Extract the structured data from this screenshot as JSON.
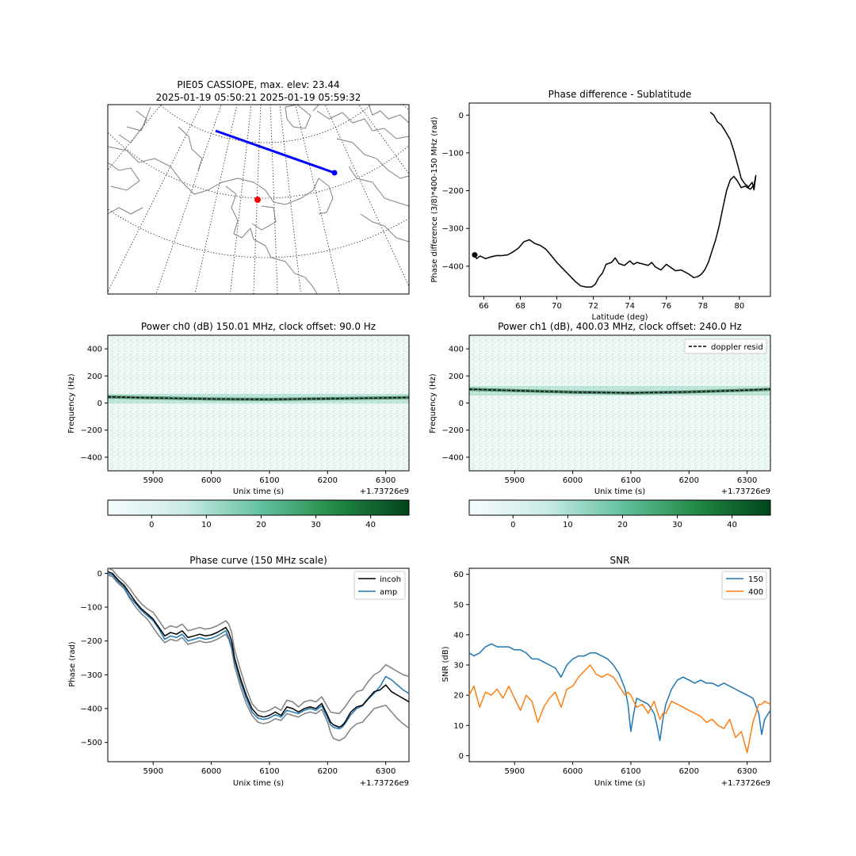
{
  "colors": {
    "orbit": "#0000ff",
    "station": "#ff0000",
    "phase_line": "#000000",
    "series_150": "#1f77b4",
    "series_400": "#ff7f0e",
    "envelope": "#808080",
    "coast": "#808080",
    "colormap": [
      "#f7fcfd",
      "#ccece6",
      "#66c2a4",
      "#238b45",
      "#00441b"
    ]
  },
  "chart_data": [
    {
      "id": "map",
      "type": "map",
      "title": "PIE05 CASSIOPE, max. elev: 23.44",
      "subtitle": "2025-01-19 05:50:21 2025-01-19 05:59:32",
      "projection": "north polar azimuthal",
      "grid": "dotted meridians and parallels",
      "ground_track": {
        "start": "northwest",
        "end": "southeast",
        "end_marker": true
      },
      "station_marker": "red dot"
    },
    {
      "id": "phase_lat",
      "type": "line",
      "title": "Phase difference - Sublatitude",
      "xlabel": "Latitude (deg)",
      "ylabel": "Phase difference (3/8)*400-150 MHz (rad)",
      "xlim": [
        65.2,
        81.7
      ],
      "ylim": [
        -480,
        32
      ],
      "xticks": [
        66,
        68,
        70,
        72,
        74,
        76,
        78,
        80
      ],
      "yticks": [
        0,
        -100,
        -200,
        -300,
        -400
      ],
      "grid": false,
      "series": [
        {
          "color": "#000000",
          "x": [
            78.4,
            78.6,
            78.8,
            79.0,
            79.2,
            79.5,
            79.7,
            79.9,
            80.1,
            80.3,
            80.5,
            80.7,
            80.8,
            80.9,
            80.8,
            80.6,
            80.3,
            80.1,
            79.9,
            79.7,
            79.5,
            79.3,
            79.1,
            78.9,
            78.7,
            78.5,
            78.3,
            78.1,
            77.9,
            77.7,
            77.5,
            77.2,
            77.0,
            76.8,
            76.5,
            76.2,
            76.0,
            75.7,
            75.4,
            75.2,
            75.0,
            74.7,
            74.4,
            74.2,
            74.0,
            73.7,
            73.4,
            73.2,
            73.0,
            72.7,
            72.5,
            72.3,
            72.1,
            71.9,
            71.6,
            71.3,
            71.0,
            70.8,
            70.6,
            70.3,
            70.0,
            69.7,
            69.4,
            69.1,
            68.8,
            68.5,
            68.2,
            67.9,
            67.6,
            67.3,
            67.0,
            66.7,
            66.4,
            66.1,
            65.8,
            65.6,
            65.5
          ],
          "y": [
            8,
            0,
            -18,
            -25,
            -40,
            -65,
            -95,
            -130,
            -168,
            -182,
            -190,
            -178,
            -198,
            -160,
            -185,
            -196,
            -188,
            -192,
            -175,
            -162,
            -172,
            -200,
            -245,
            -292,
            -330,
            -360,
            -390,
            -410,
            -422,
            -428,
            -430,
            -420,
            -415,
            -410,
            -412,
            -402,
            -395,
            -410,
            -402,
            -390,
            -398,
            -394,
            -390,
            -395,
            -386,
            -398,
            -393,
            -378,
            -390,
            -395,
            -418,
            -430,
            -448,
            -455,
            -455,
            -452,
            -440,
            -430,
            -420,
            -405,
            -390,
            -372,
            -355,
            -345,
            -340,
            -330,
            -335,
            -352,
            -362,
            -370,
            -372,
            -372,
            -375,
            -380,
            -373,
            -380,
            -370
          ]
        },
        {
          "color": "#000000",
          "x": [
            65.5
          ],
          "y": [
            -370
          ],
          "marker": "dot"
        }
      ]
    },
    {
      "id": "power0",
      "type": "heatmap",
      "title": "Power ch0 (dB) 150.01 MHz, clock offset: 90.0 Hz",
      "xlabel": "Unix time (s)",
      "ylabel": "Frequency (Hz)",
      "offset_text": "+1.73726e9",
      "xlim": [
        5822,
        6340
      ],
      "ylim": [
        -500,
        500
      ],
      "xticks": [
        5900,
        6000,
        6100,
        6200,
        6300
      ],
      "yticks": [
        400,
        200,
        0,
        -200,
        -400
      ],
      "colorbar": {
        "ticks": [
          0,
          10,
          20,
          30,
          40
        ],
        "range": [
          -8,
          47
        ]
      },
      "doppler_curve": {
        "x": [
          5822,
          5900,
          6000,
          6100,
          6200,
          6300,
          6340
        ],
        "y": [
          45,
          38,
          30,
          27,
          32,
          38,
          41
        ]
      }
    },
    {
      "id": "power1",
      "type": "heatmap",
      "title": "Power ch1 (dB), 400.03 MHz, clock offset: 240.0 Hz",
      "xlabel": "Unix time (s)",
      "ylabel": "Frequency (Hz)",
      "offset_text": "+1.73726e9",
      "xlim": [
        5822,
        6340
      ],
      "ylim": [
        -500,
        500
      ],
      "xticks": [
        5900,
        6000,
        6100,
        6200,
        6300
      ],
      "yticks": [
        400,
        200,
        0,
        -200,
        -400
      ],
      "legend": [
        "doppler resid"
      ],
      "legend_loc": "upper right",
      "colorbar": {
        "ticks": [
          0,
          10,
          20,
          30,
          40
        ],
        "range": [
          -8,
          47
        ]
      },
      "doppler_curve": {
        "x": [
          5822,
          5900,
          6000,
          6100,
          6200,
          6300,
          6340
        ],
        "y": [
          102,
          92,
          80,
          75,
          82,
          95,
          102
        ]
      }
    },
    {
      "id": "phase_curve",
      "type": "line",
      "title": "Phase curve (150 MHz scale)",
      "xlabel": "Unix time (s)",
      "ylabel": "Phase (rad)",
      "offset_text": "+1.73726e9",
      "xlim": [
        5822,
        6340
      ],
      "ylim": [
        -557,
        15
      ],
      "xticks": [
        5900,
        6000,
        6100,
        6200,
        6300
      ],
      "yticks": [
        0,
        -100,
        -200,
        -300,
        -400,
        -500
      ],
      "legend_loc": "upper right",
      "x": [
        5822,
        5830,
        5840,
        5850,
        5860,
        5870,
        5880,
        5890,
        5900,
        5910,
        5920,
        5930,
        5940,
        5950,
        5960,
        5970,
        5980,
        5990,
        6000,
        6010,
        6020,
        6025,
        6030,
        6035,
        6040,
        6050,
        6060,
        6070,
        6080,
        6090,
        6100,
        6110,
        6120,
        6130,
        6140,
        6150,
        6160,
        6170,
        6180,
        6190,
        6200,
        6205,
        6210,
        6220,
        6225,
        6230,
        6240,
        6250,
        6260,
        6270,
        6280,
        6290,
        6300,
        6310,
        6320,
        6330,
        6340
      ],
      "series": [
        {
          "name": "incoh",
          "color": "#000000",
          "y": [
            5,
            0,
            -20,
            -35,
            -60,
            -85,
            -105,
            -120,
            -135,
            -160,
            -185,
            -175,
            -180,
            -170,
            -190,
            -185,
            -180,
            -185,
            -182,
            -175,
            -165,
            -160,
            -175,
            -200,
            -250,
            -310,
            -360,
            -400,
            -420,
            -425,
            -420,
            -410,
            -420,
            -395,
            -400,
            -410,
            -400,
            -395,
            -400,
            -385,
            -420,
            -440,
            -448,
            -455,
            -450,
            -440,
            -410,
            -395,
            -390,
            -370,
            -350,
            -345,
            -330,
            -350,
            -360,
            -370,
            -380
          ]
        },
        {
          "name": "amp",
          "color": "#1f77b4",
          "y": [
            0,
            -5,
            -25,
            -40,
            -70,
            -90,
            -110,
            -125,
            -140,
            -165,
            -195,
            -185,
            -190,
            -180,
            -200,
            -195,
            -190,
            -195,
            -192,
            -185,
            -175,
            -170,
            -190,
            -215,
            -260,
            -320,
            -370,
            -410,
            -428,
            -432,
            -428,
            -418,
            -425,
            -405,
            -410,
            -415,
            -405,
            -400,
            -405,
            -392,
            -428,
            -448,
            -455,
            -460,
            -455,
            -445,
            -418,
            -400,
            -392,
            -372,
            -355,
            -335,
            -305,
            -315,
            -330,
            -345,
            -355
          ]
        },
        {
          "name": "",
          "color": "#808080",
          "y": [
            15,
            10,
            -10,
            -25,
            -45,
            -70,
            -90,
            -105,
            -115,
            -140,
            -165,
            -155,
            -160,
            -150,
            -170,
            -165,
            -160,
            -165,
            -162,
            -155,
            -145,
            -140,
            -150,
            -175,
            -225,
            -285,
            -340,
            -385,
            -405,
            -410,
            -405,
            -395,
            -405,
            -375,
            -380,
            -395,
            -380,
            -375,
            -380,
            -365,
            -395,
            -410,
            -412,
            -415,
            -405,
            -395,
            -370,
            -350,
            -345,
            -320,
            -300,
            -290,
            -270,
            -280,
            -290,
            -300,
            -305
          ]
        },
        {
          "name": "",
          "color": "#808080",
          "y": [
            -5,
            -10,
            -30,
            -45,
            -75,
            -100,
            -120,
            -135,
            -160,
            -185,
            -205,
            -195,
            -200,
            -190,
            -210,
            -205,
            -200,
            -205,
            -202,
            -195,
            -185,
            -180,
            -195,
            -225,
            -275,
            -335,
            -385,
            -420,
            -440,
            -445,
            -440,
            -430,
            -435,
            -415,
            -420,
            -425,
            -415,
            -410,
            -415,
            -402,
            -440,
            -470,
            -488,
            -495,
            -490,
            -485,
            -460,
            -445,
            -440,
            -420,
            -400,
            -395,
            -390,
            -410,
            -430,
            -445,
            -458
          ]
        }
      ]
    },
    {
      "id": "snr",
      "type": "line",
      "title": "SNR",
      "xlabel": "Unix time (s)",
      "ylabel": "SNR (dB)",
      "offset_text": "+1.73726e9",
      "xlim": [
        5822,
        6340
      ],
      "ylim": [
        -2,
        62
      ],
      "xticks": [
        5900,
        6000,
        6100,
        6200,
        6300
      ],
      "yticks": [
        0,
        10,
        20,
        30,
        40,
        50,
        60
      ],
      "legend_loc": "upper right",
      "x": [
        5822,
        5830,
        5840,
        5850,
        5860,
        5870,
        5880,
        5890,
        5900,
        5910,
        5920,
        5930,
        5940,
        5950,
        5960,
        5970,
        5980,
        5990,
        6000,
        6010,
        6020,
        6030,
        6040,
        6050,
        6060,
        6070,
        6080,
        6090,
        6095,
        6100,
        6105,
        6110,
        6120,
        6130,
        6140,
        6145,
        6150,
        6155,
        6160,
        6170,
        6180,
        6190,
        6200,
        6210,
        6220,
        6230,
        6240,
        6250,
        6260,
        6270,
        6280,
        6290,
        6300,
        6310,
        6320,
        6325,
        6330,
        6340
      ],
      "series": [
        {
          "name": "150",
          "color": "#1f77b4",
          "y": [
            34,
            33,
            34,
            36,
            37,
            36,
            36,
            36,
            35,
            35,
            34,
            32,
            32,
            31,
            30,
            29,
            26,
            30,
            32,
            33,
            33,
            34,
            34,
            33,
            32,
            30,
            27,
            22,
            17,
            8,
            14,
            19,
            18,
            17,
            14,
            10,
            5,
            12,
            17,
            22,
            25,
            26,
            25,
            24,
            25,
            24,
            24,
            23,
            24,
            23,
            22,
            21,
            20,
            19,
            14,
            7,
            12,
            15
          ]
        },
        {
          "name": "400",
          "color": "#ff7f0e",
          "y": [
            20,
            23,
            16,
            21,
            20,
            22,
            19,
            23,
            19,
            15,
            20,
            18,
            11,
            16,
            19,
            21,
            16,
            22,
            23,
            26,
            28,
            30,
            27,
            26,
            27,
            26,
            23,
            20,
            21,
            20,
            18,
            16,
            17,
            14,
            18,
            15,
            12,
            14,
            14,
            18,
            17,
            16,
            15,
            14,
            13,
            11,
            12,
            10,
            9,
            12,
            6,
            8,
            1,
            11,
            17,
            17,
            18,
            17
          ]
        }
      ]
    }
  ]
}
